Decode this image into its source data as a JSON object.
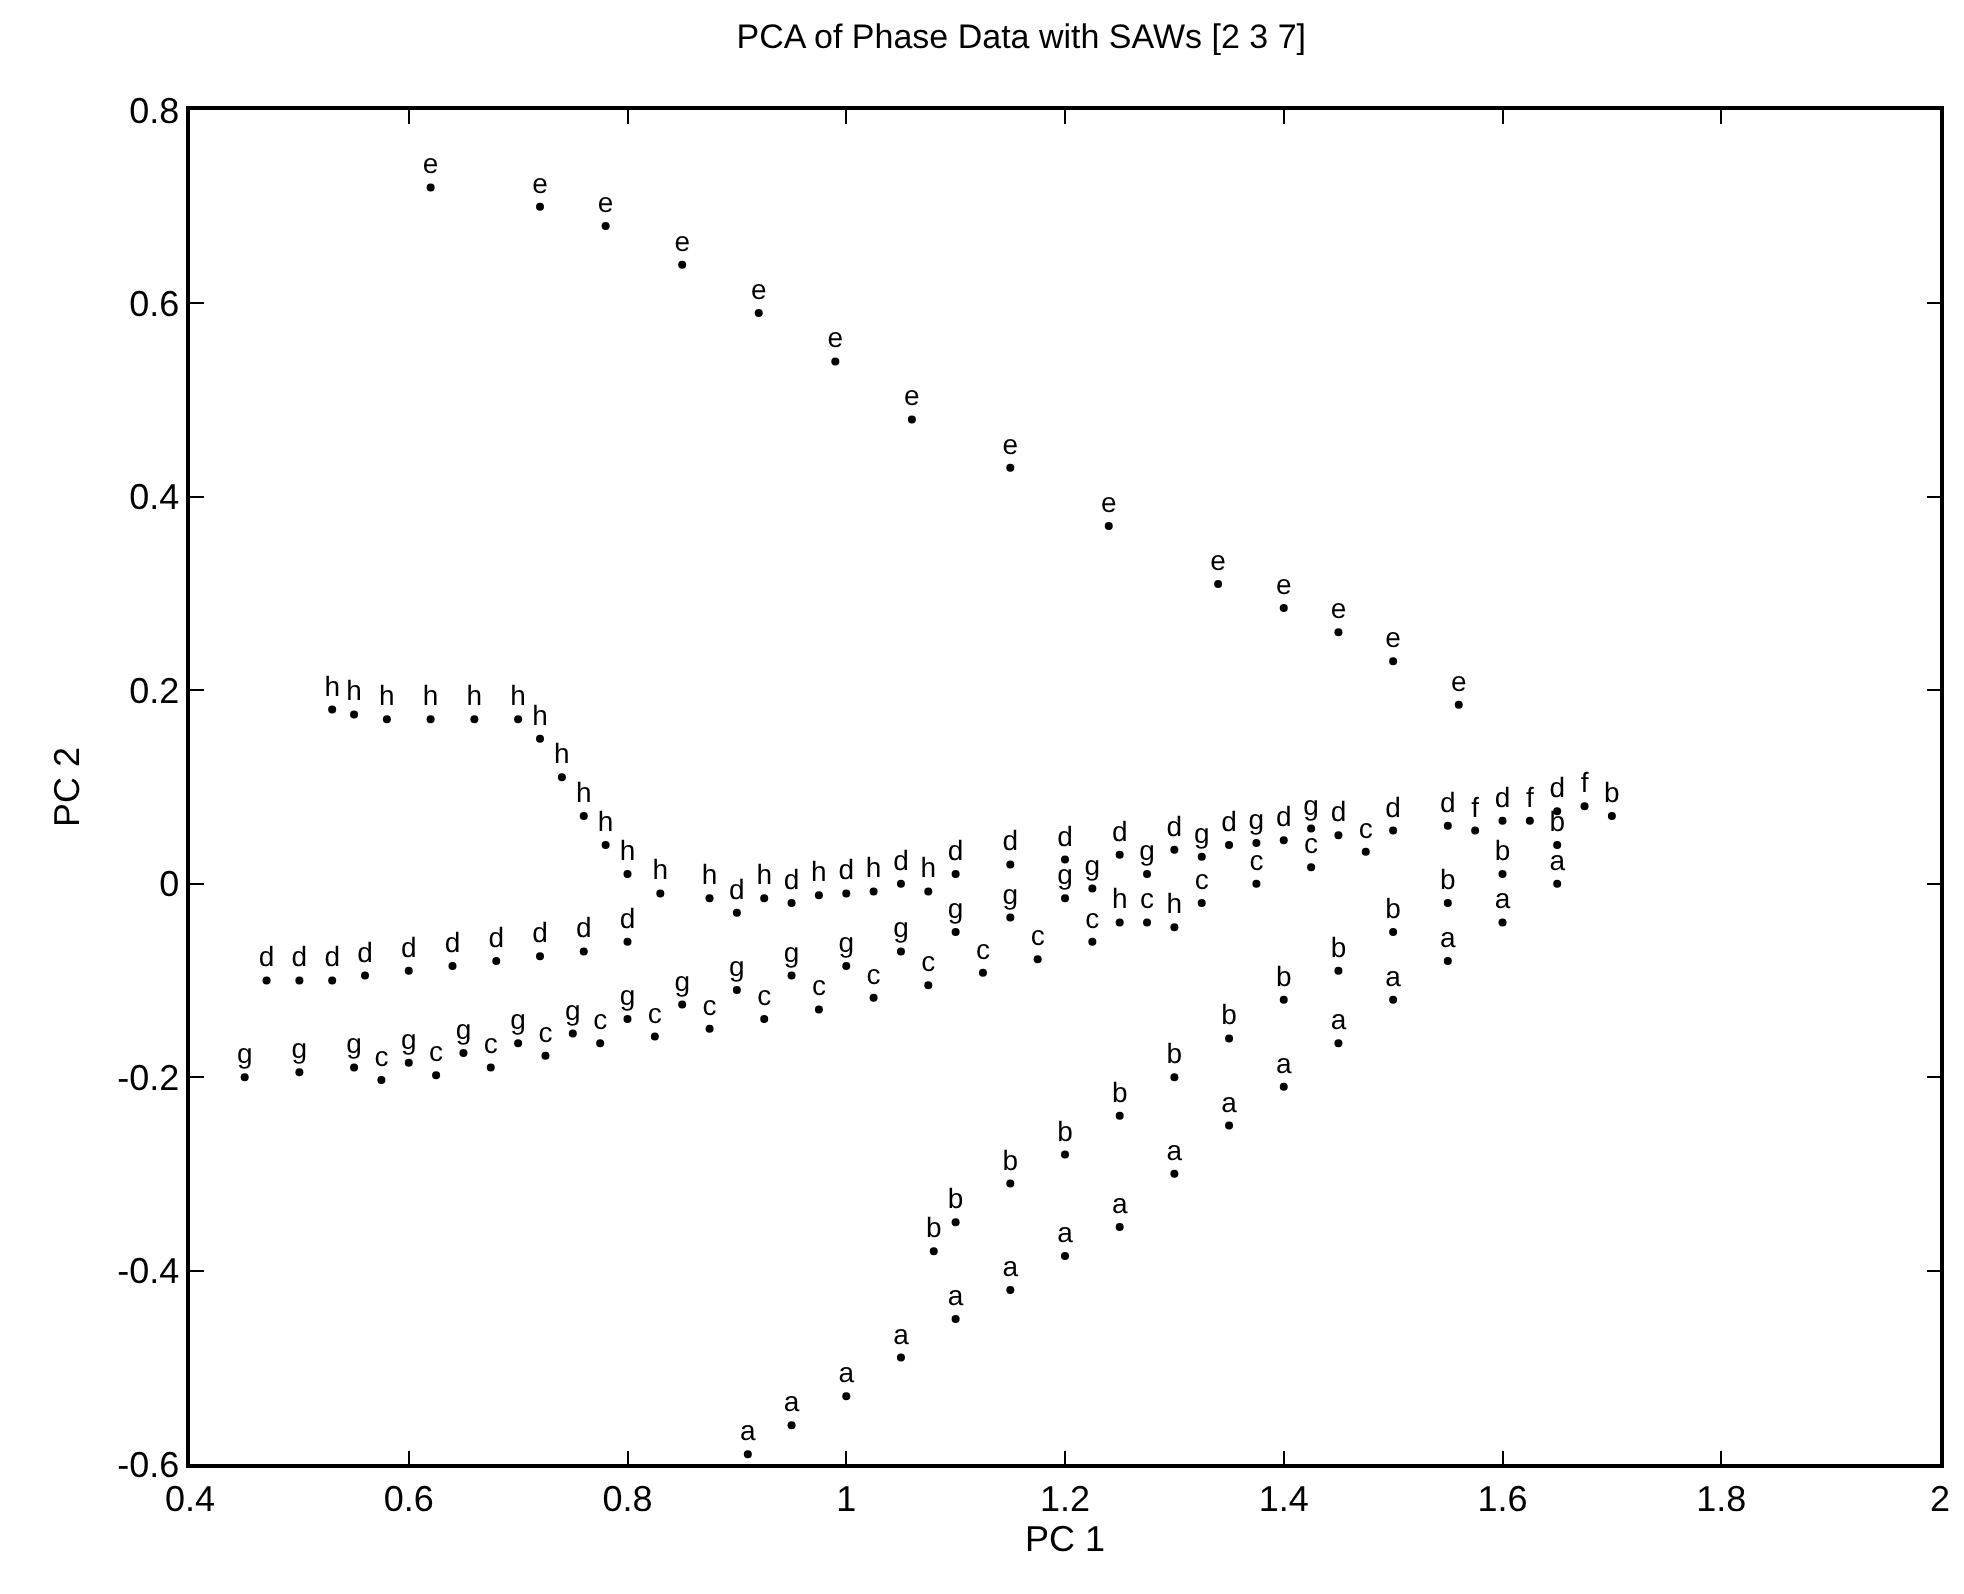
{
  "chart_data": {
    "type": "scatter",
    "title": "PCA of Phase Data with SAWs [2 3 7]",
    "xlabel": "PC 1",
    "ylabel": "PC 2",
    "xlim": [
      0.4,
      2
    ],
    "xticks": [
      0.4,
      0.6,
      0.8,
      1,
      1.2,
      1.4,
      1.6,
      1.8,
      2
    ],
    "ylim": [
      -0.6,
      0.8
    ],
    "marker": "circle",
    "yticks": [
      -0.6,
      -0.4,
      -0.2,
      0,
      0.2,
      0.4,
      0.6,
      0.8
    ],
    "series": [
      {
        "name": "a",
        "color": "#000000",
        "x": [
          0.91,
          0.95,
          1.0,
          1.05,
          1.1,
          1.15,
          1.2,
          1.25,
          1.3,
          1.35,
          1.4,
          1.45,
          1.5,
          1.55,
          1.6,
          1.65
        ],
        "values": [
          -0.59,
          -0.56,
          -0.53,
          -0.49,
          -0.45,
          -0.42,
          -0.385,
          -0.355,
          -0.3,
          -0.25,
          -0.21,
          -0.165,
          -0.12,
          -0.08,
          -0.04,
          0.0
        ]
      },
      {
        "name": "b",
        "color": "#000000",
        "x": [
          1.08,
          1.1,
          1.15,
          1.2,
          1.25,
          1.3,
          1.35,
          1.4,
          1.45,
          1.5,
          1.55,
          1.6,
          1.65,
          1.7
        ],
        "values": [
          -0.38,
          -0.35,
          -0.31,
          -0.28,
          -0.24,
          -0.2,
          -0.16,
          -0.12,
          -0.09,
          -0.05,
          -0.02,
          0.01,
          0.04,
          0.07
        ]
      },
      {
        "name": "c",
        "color": "#000000",
        "x": [
          0.575,
          0.625,
          0.675,
          0.725,
          0.775,
          0.825,
          0.875,
          0.925,
          0.975,
          1.025,
          1.075,
          1.125,
          1.175,
          1.225,
          1.275,
          1.325,
          1.375,
          1.425,
          1.475
        ],
        "values": [
          -0.203,
          -0.198,
          -0.19,
          -0.178,
          -0.165,
          -0.158,
          -0.15,
          -0.14,
          -0.13,
          -0.118,
          -0.105,
          -0.092,
          -0.078,
          -0.06,
          -0.04,
          -0.02,
          0.0,
          0.017,
          0.033
        ]
      },
      {
        "name": "d",
        "color": "#000000",
        "x": [
          0.47,
          0.5,
          0.53,
          0.56,
          0.6,
          0.64,
          0.68,
          0.72,
          0.76,
          0.8,
          0.9,
          0.95,
          1.0,
          1.05,
          1.1,
          1.15,
          1.2,
          1.25,
          1.3,
          1.35,
          1.4,
          1.45,
          1.5,
          1.55,
          1.6,
          1.65
        ],
        "values": [
          -0.1,
          -0.1,
          -0.1,
          -0.095,
          -0.09,
          -0.085,
          -0.08,
          -0.075,
          -0.07,
          -0.06,
          -0.03,
          -0.02,
          -0.01,
          0.0,
          0.01,
          0.02,
          0.025,
          0.03,
          0.035,
          0.04,
          0.045,
          0.05,
          0.055,
          0.06,
          0.065,
          0.075
        ]
      },
      {
        "name": "e",
        "color": "#000000",
        "x": [
          0.62,
          0.72,
          0.78,
          0.85,
          0.92,
          0.99,
          1.06,
          1.15,
          1.24,
          1.34,
          1.4,
          1.45,
          1.5,
          1.56
        ],
        "values": [
          0.72,
          0.7,
          0.68,
          0.64,
          0.59,
          0.54,
          0.48,
          0.43,
          0.37,
          0.31,
          0.285,
          0.26,
          0.23,
          0.185
        ]
      },
      {
        "name": "f",
        "color": "#000000",
        "x": [
          1.575,
          1.625,
          1.675
        ],
        "values": [
          0.055,
          0.065,
          0.08
        ]
      },
      {
        "name": "g",
        "color": "#000000",
        "x": [
          0.45,
          0.5,
          0.55,
          0.6,
          0.65,
          0.7,
          0.75,
          0.8,
          0.85,
          0.9,
          0.95,
          1.0,
          1.05,
          1.1,
          1.15,
          1.2,
          1.225,
          1.275,
          1.325,
          1.375,
          1.425
        ],
        "values": [
          -0.2,
          -0.195,
          -0.19,
          -0.185,
          -0.175,
          -0.165,
          -0.155,
          -0.14,
          -0.125,
          -0.11,
          -0.095,
          -0.085,
          -0.07,
          -0.05,
          -0.035,
          -0.015,
          -0.005,
          0.01,
          0.028,
          0.042,
          0.057
        ]
      },
      {
        "name": "h",
        "color": "#000000",
        "x": [
          0.53,
          0.55,
          0.58,
          0.62,
          0.66,
          0.7,
          0.72,
          0.74,
          0.76,
          0.78,
          0.8,
          0.83,
          0.875,
          0.925,
          0.975,
          1.025,
          1.075,
          1.25,
          1.3
        ],
        "values": [
          0.18,
          0.175,
          0.17,
          0.17,
          0.17,
          0.17,
          0.15,
          0.11,
          0.07,
          0.04,
          0.01,
          -0.01,
          -0.015,
          -0.015,
          -0.012,
          -0.008,
          -0.008,
          -0.04,
          -0.045
        ]
      }
    ]
  }
}
